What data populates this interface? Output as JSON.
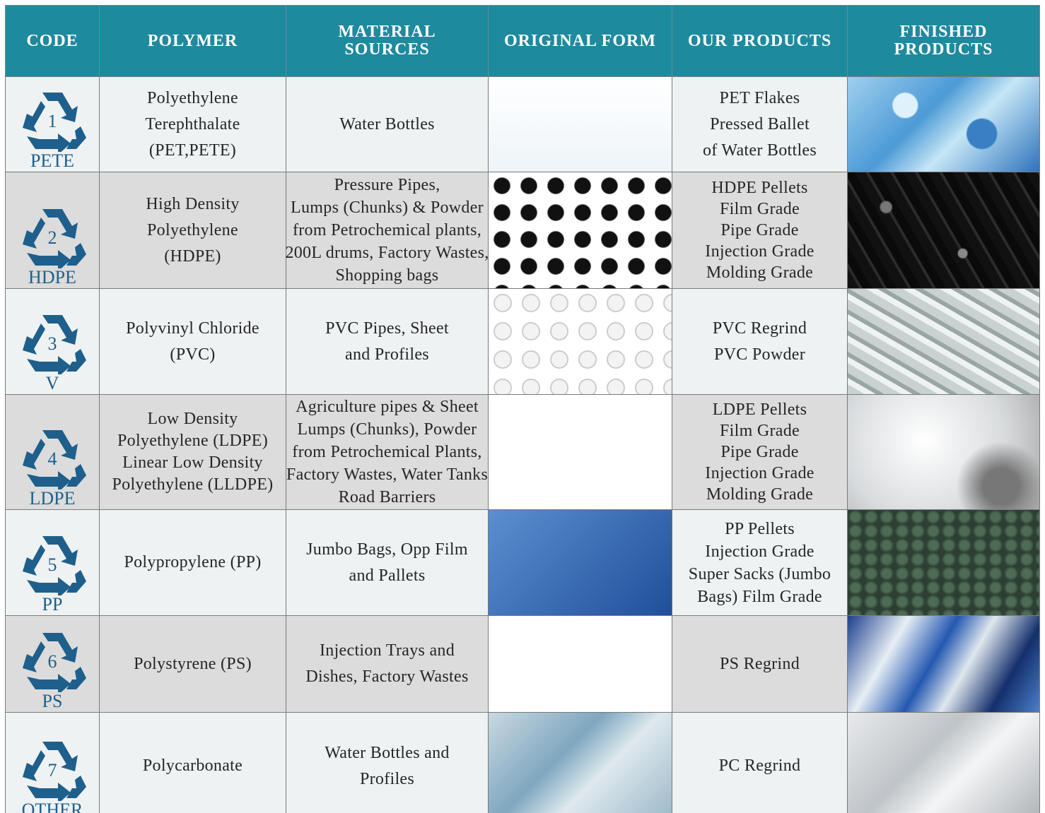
{
  "table": {
    "headers": [
      [
        "CODE"
      ],
      [
        "POLYMER"
      ],
      [
        "MATERIAL",
        "SOURCES"
      ],
      [
        "ORIGINAL FORM"
      ],
      [
        "OUR PRODUCTS"
      ],
      [
        "FINISHED",
        "PRODUCTS"
      ]
    ],
    "rows": [
      {
        "code": "1",
        "label": "PETE",
        "polymer": [
          "Polyethylene",
          "Terephthalate",
          "(PET,PETE)"
        ],
        "sources": [
          "Water Bottles"
        ],
        "products": [
          "PET Flakes",
          "Pressed Ballet",
          "of Water Bottles"
        ]
      },
      {
        "code": "2",
        "label": "HDPE",
        "polymer": [
          "High Density",
          "Polyethylene",
          "(HDPE)"
        ],
        "sources": [
          "Pressure Pipes,",
          "Lumps (Chunks) & Powder",
          "from Petrochemical plants,",
          "200L drums, Factory Wastes,",
          "Shopping bags"
        ],
        "products": [
          "HDPE Pellets",
          "Film Grade",
          "Pipe Grade",
          "Injection Grade",
          "Molding Grade"
        ]
      },
      {
        "code": "3",
        "label": "V",
        "polymer": [
          "Polyvinyl Chloride",
          "(PVC)"
        ],
        "sources": [
          "PVC Pipes, Sheet",
          "and Profiles"
        ],
        "products": [
          "PVC Regrind",
          "PVC Powder"
        ]
      },
      {
        "code": "4",
        "label": "LDPE",
        "polymer": [
          "Low Density",
          "Polyethylene (LDPE)",
          "Linear Low Density",
          "Polyethylene (LLDPE)"
        ],
        "sources": [
          "Agriculture pipes & Sheet",
          "Lumps (Chunks), Powder",
          "from Petrochemical Plants,",
          "Factory Wastes, Water Tanks",
          "Road Barriers"
        ],
        "products": [
          "LDPE Pellets",
          "Film Grade",
          "Pipe Grade",
          "Injection Grade",
          "Molding Grade"
        ]
      },
      {
        "code": "5",
        "label": "PP",
        "polymer": [
          "Polypropylene (PP)"
        ],
        "sources": [
          "Jumbo Bags, Opp Film",
          "and Pallets"
        ],
        "products": [
          "PP Pellets",
          "Injection Grade",
          "Super Sacks (Jumbo",
          "Bags) Film Grade"
        ]
      },
      {
        "code": "6",
        "label": "PS",
        "polymer": [
          "Polystyrene (PS)"
        ],
        "sources": [
          "Injection Trays and",
          "Dishes, Factory Wastes"
        ],
        "products": [
          "PS Regrind"
        ]
      },
      {
        "code": "7",
        "label": "OTHER",
        "polymer": [
          "Polycarbonate"
        ],
        "sources": [
          "Water Bottles and",
          "Profiles"
        ],
        "products": [
          "PC Regrind"
        ]
      }
    ]
  }
}
